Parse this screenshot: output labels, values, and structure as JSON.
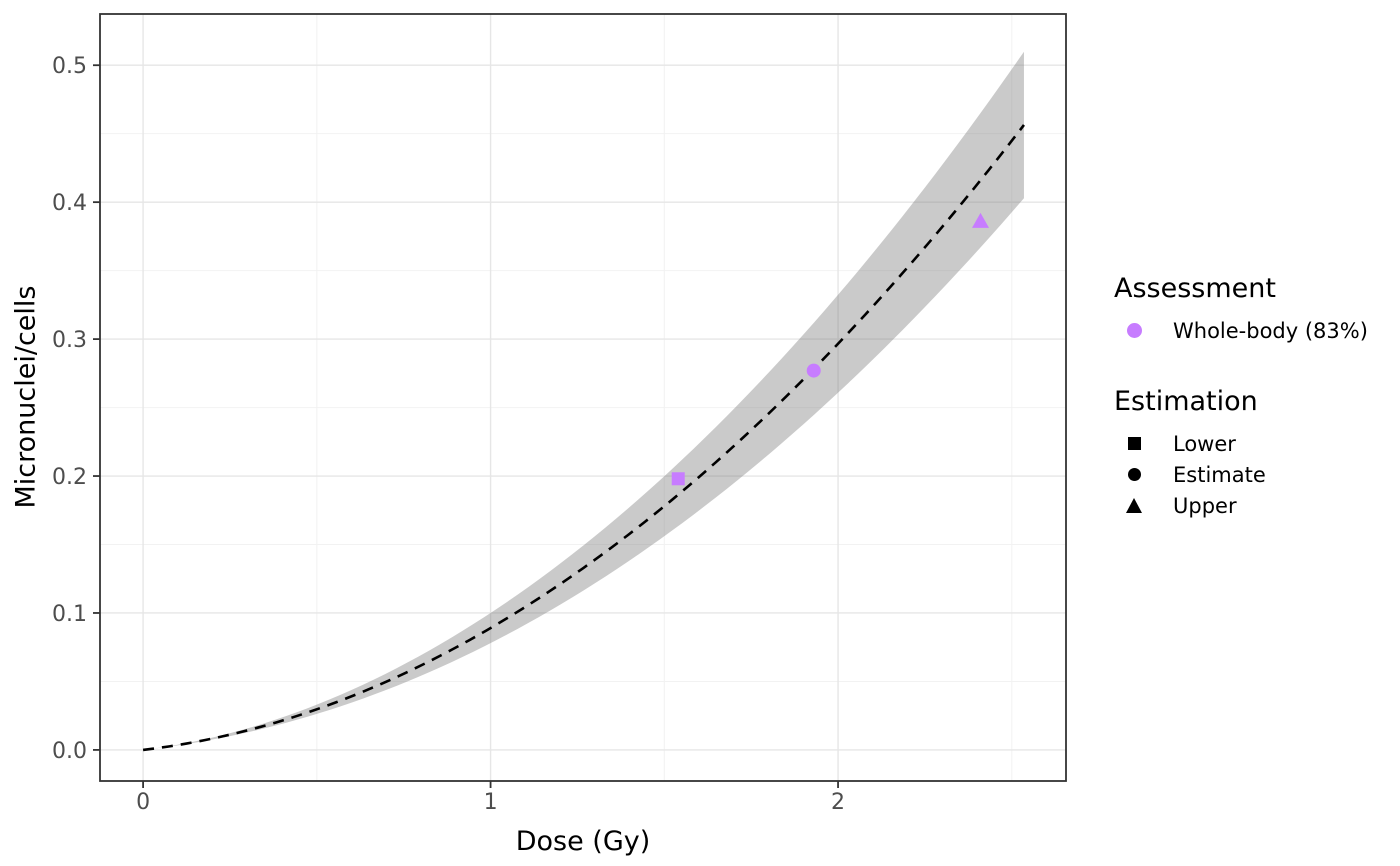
{
  "figure": {
    "background": "#FFFFFF"
  },
  "axes": {
    "x": {
      "title": "Dose (Gy)",
      "ticks": [
        {
          "v": 0,
          "label": "0"
        },
        {
          "v": 1,
          "label": "1"
        },
        {
          "v": 2,
          "label": "2"
        }
      ],
      "minor": [
        0.5,
        1.5,
        2.5
      ]
    },
    "y": {
      "title": "Micronuclei/cells",
      "ticks": [
        {
          "v": 0.0,
          "label": "0.0"
        },
        {
          "v": 0.1,
          "label": "0.1"
        },
        {
          "v": 0.2,
          "label": "0.2"
        },
        {
          "v": 0.3,
          "label": "0.3"
        },
        {
          "v": 0.4,
          "label": "0.4"
        },
        {
          "v": 0.5,
          "label": "0.5"
        }
      ],
      "minor": [
        0.05,
        0.15,
        0.25,
        0.35,
        0.45
      ]
    }
  },
  "legend": {
    "assessment": {
      "title": "Assessment",
      "items": [
        {
          "label": "Whole-body (83%)",
          "shape": "circle",
          "color": "#C77CFF"
        }
      ]
    },
    "estimation": {
      "title": "Estimation",
      "items": [
        {
          "label": "Lower",
          "shape": "square",
          "color": "#000000"
        },
        {
          "label": "Estimate",
          "shape": "circle",
          "color": "#000000"
        },
        {
          "label": "Upper",
          "shape": "triangle",
          "color": "#000000"
        }
      ]
    }
  },
  "style": {
    "panel_bg": "#FFFFFF",
    "panel_border": "#333333",
    "grid_major": "#E6E6E6",
    "grid_minor": "#F2F2F2",
    "tick": "#333333",
    "tick_label": "#4D4D4D",
    "tick_label_size": 22,
    "accent_purple": "#C77CFF"
  },
  "chart_data": {
    "type": "line",
    "subtype": "dose-response calibration curve with confidence ribbon and dose-estimate points",
    "title": "",
    "xlabel": "Dose (Gy)",
    "ylabel": "Micronuclei/cells",
    "xlim": [
      -0.124,
      2.656
    ],
    "ylim": [
      -0.0227,
      0.5374
    ],
    "x_ticks": [
      0,
      1,
      2
    ],
    "y_ticks": [
      0.0,
      0.1,
      0.2,
      0.3,
      0.4,
      0.5
    ],
    "grid": true,
    "legend_position": "right",
    "curve": {
      "name": "fitted calibration curve",
      "model": "yield = alpha*dose + beta*dose^2",
      "alpha": 0.0297,
      "beta": 0.0593,
      "dose_range": [
        0,
        2.535
      ],
      "line_style": "dashed",
      "color": "#000000",
      "sample_values": [
        {
          "dose": 0.0,
          "yield": 0.0
        },
        {
          "dose": 0.5,
          "yield": 0.03
        },
        {
          "dose": 1.0,
          "yield": 0.089
        },
        {
          "dose": 1.5,
          "yield": 0.178
        },
        {
          "dose": 2.0,
          "yield": 0.297
        },
        {
          "dose": 2.535,
          "yield": 0.456
        }
      ]
    },
    "ribbon": {
      "name": "confidence band",
      "halfwidth_model": "hw = k*dose^p",
      "k": 0.011,
      "p": 1.7,
      "end_values": {
        "dose": 2.535,
        "lower": 0.403,
        "upper": 0.51
      },
      "fill": "#808080",
      "opacity": 0.42
    },
    "points": [
      {
        "series": "Whole-body (83%)",
        "estimation": "Lower",
        "shape": "square",
        "dose": 1.54,
        "yield": 0.198
      },
      {
        "series": "Whole-body (83%)",
        "estimation": "Estimate",
        "shape": "circle",
        "dose": 1.93,
        "yield": 0.277
      },
      {
        "series": "Whole-body (83%)",
        "estimation": "Upper",
        "shape": "triangle",
        "dose": 2.41,
        "yield": 0.386
      }
    ],
    "point_color": "#C77CFF"
  }
}
